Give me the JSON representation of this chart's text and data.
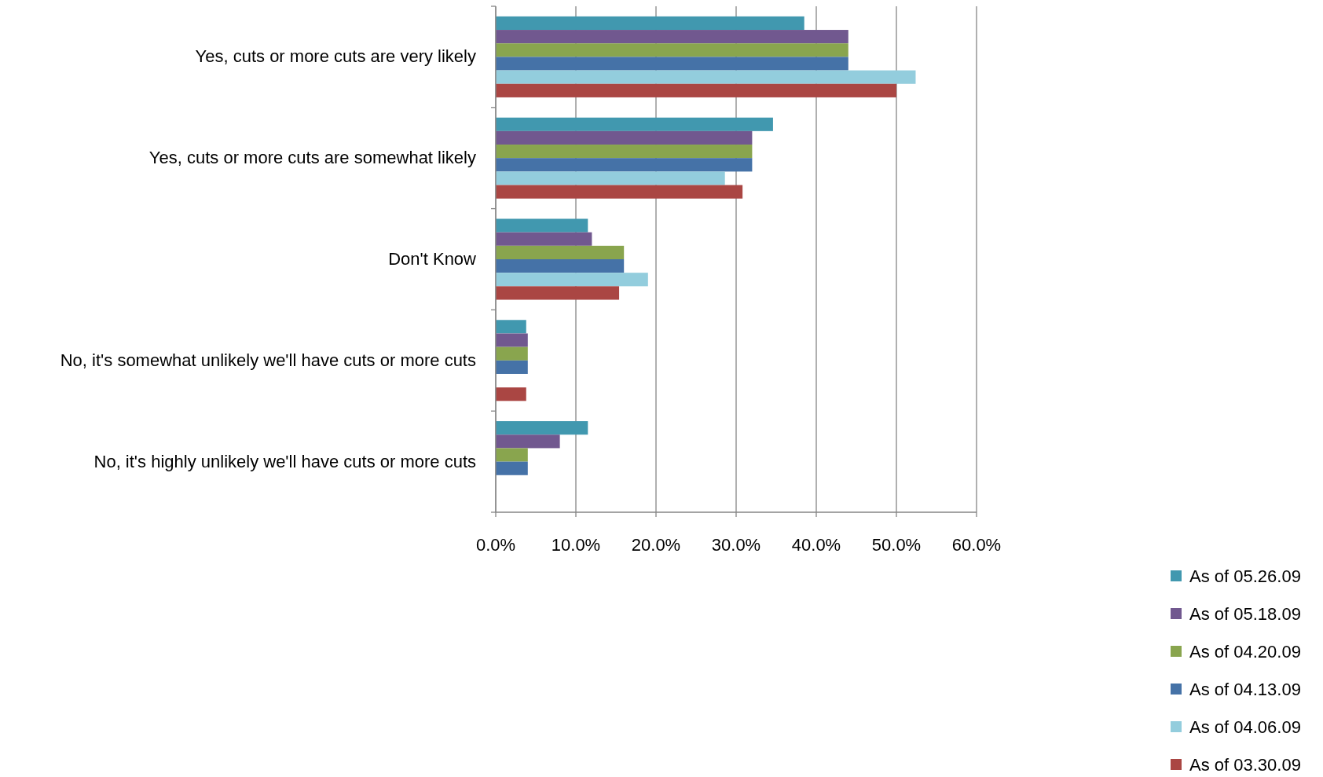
{
  "chart_data": {
    "type": "bar",
    "orientation": "horizontal",
    "categories": [
      "Yes, cuts or more cuts are very likely",
      "Yes, cuts or more cuts are somewhat likely",
      "Don't Know",
      "No, it's somewhat unlikely we'll have cuts or more cuts",
      "No, it's highly unlikely we'll have cuts or more cuts"
    ],
    "series": [
      {
        "name": "As of 05.26.09",
        "color": "#4198af",
        "values": [
          38.5,
          34.6,
          11.5,
          3.8,
          11.5
        ]
      },
      {
        "name": "As of 05.18.09",
        "color": "#71588f",
        "values": [
          44.0,
          32.0,
          12.0,
          4.0,
          8.0
        ]
      },
      {
        "name": "As of 04.20.09",
        "color": "#89a54e",
        "values": [
          44.0,
          32.0,
          16.0,
          4.0,
          4.0
        ]
      },
      {
        "name": "As of 04.13.09",
        "color": "#4572a7",
        "values": [
          44.0,
          32.0,
          16.0,
          4.0,
          4.0
        ]
      },
      {
        "name": "As of 04.06.09",
        "color": "#93cddd",
        "values": [
          52.4,
          28.6,
          19.0,
          0,
          0
        ]
      },
      {
        "name": "As of 03.30.09",
        "color": "#aa4643",
        "values": [
          50.0,
          30.8,
          15.4,
          3.8,
          0
        ]
      }
    ],
    "xlim": [
      0,
      60
    ],
    "xticks": [
      {
        "value": 0,
        "label": "0.0%"
      },
      {
        "value": 10,
        "label": "10.0%"
      },
      {
        "value": 20,
        "label": "20.0%"
      },
      {
        "value": 30,
        "label": "30.0%"
      },
      {
        "value": 40,
        "label": "40.0%"
      },
      {
        "value": 50,
        "label": "50.0%"
      },
      {
        "value": 60,
        "label": "60.0%"
      }
    ],
    "grid": "x",
    "legend": "bottom right"
  }
}
